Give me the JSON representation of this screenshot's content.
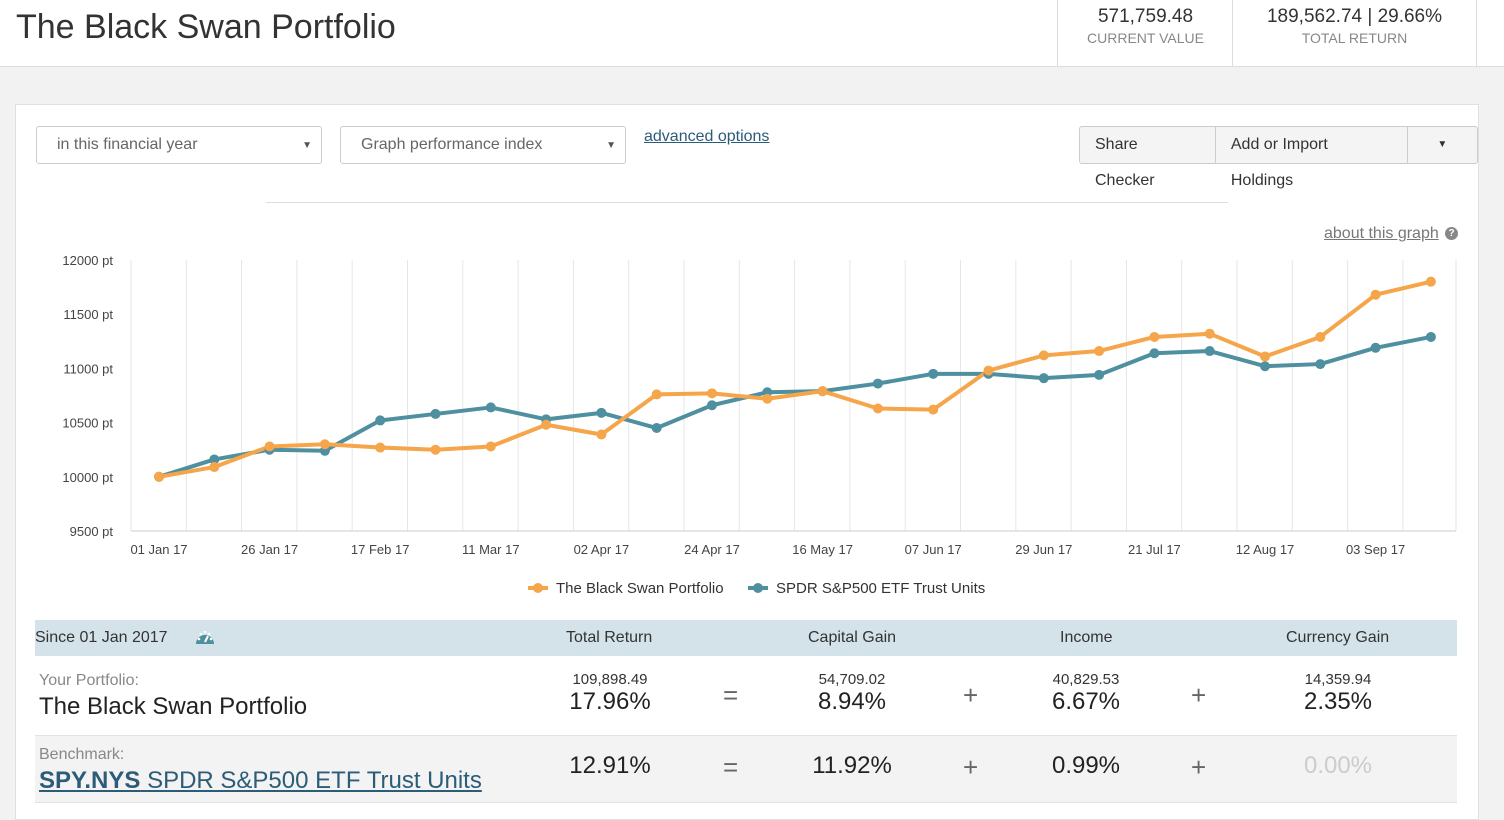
{
  "header": {
    "title": "The Black Swan Portfolio",
    "current_value": "571,759.48",
    "current_value_label": "CURRENT VALUE",
    "total_return": "189,562.74 | 29.66%",
    "total_return_label": "TOTAL RETURN"
  },
  "controls": {
    "period_select": "in this financial year",
    "graph_select": "Graph performance index",
    "advanced_link": "advanced options",
    "share_checker": "Share Checker",
    "add_holdings": "Add or Import Holdings",
    "about_graph": "about this graph"
  },
  "chart_data": {
    "type": "line",
    "title": "",
    "xlabel": "",
    "ylabel": "",
    "ylim": [
      9500,
      12000
    ],
    "y_ticks": [
      "12000 pt",
      "11500 pt",
      "11000 pt",
      "10500 pt",
      "10000 pt",
      "9500 pt"
    ],
    "y_tick_values": [
      12000,
      11500,
      11000,
      10500,
      10000,
      9500
    ],
    "x_ticks": [
      "01 Jan 17",
      "26 Jan 17",
      "17 Feb 17",
      "11 Mar 17",
      "02 Apr 17",
      "24 Apr 17",
      "16 May 17",
      "07 Jun 17",
      "29 Jun 17",
      "21 Jul 17",
      "12 Aug 17",
      "03 Sep 17"
    ],
    "legend_position": "bottom",
    "series": [
      {
        "name": "The Black Swan Portfolio",
        "color": "#f5a54a",
        "values": [
          10000,
          10090,
          10280,
          10300,
          10270,
          10250,
          10280,
          10480,
          10390,
          10760,
          10770,
          10720,
          10790,
          10630,
          10620,
          10980,
          11120,
          11160,
          11290,
          11320,
          11110,
          11290,
          11680,
          11800
        ]
      },
      {
        "name": "SPDR S&P500 ETF Trust Units",
        "color": "#4e8fa0",
        "values": [
          10000,
          10160,
          10250,
          10240,
          10520,
          10580,
          10640,
          10530,
          10590,
          10450,
          10660,
          10780,
          10790,
          10860,
          10950,
          10950,
          10910,
          10940,
          11140,
          11160,
          11020,
          11040,
          11190,
          11290
        ]
      }
    ]
  },
  "summary": {
    "since_label": "Since 01 Jan 2017",
    "col_total_return": "Total Return",
    "col_capital_gain": "Capital Gain",
    "col_income": "Income",
    "col_currency_gain": "Currency Gain",
    "eq": "=",
    "plus": "+",
    "portfolio": {
      "label": "Your Portfolio:",
      "name": "The Black Swan Portfolio",
      "total_return_amount": "109,898.49",
      "total_return_pct": "17.96%",
      "capital_gain_amount": "54,709.02",
      "capital_gain_pct": "8.94%",
      "income_amount": "40,829.53",
      "income_pct": "6.67%",
      "currency_gain_amount": "14,359.94",
      "currency_gain_pct": "2.35%"
    },
    "benchmark": {
      "label": "Benchmark:",
      "code": "SPY.NYS",
      "name": "SPDR S&P500 ETF Trust Units",
      "total_return_pct": "12.91%",
      "capital_gain_pct": "11.92%",
      "income_pct": "0.99%",
      "currency_gain_pct": "0.00%"
    }
  }
}
